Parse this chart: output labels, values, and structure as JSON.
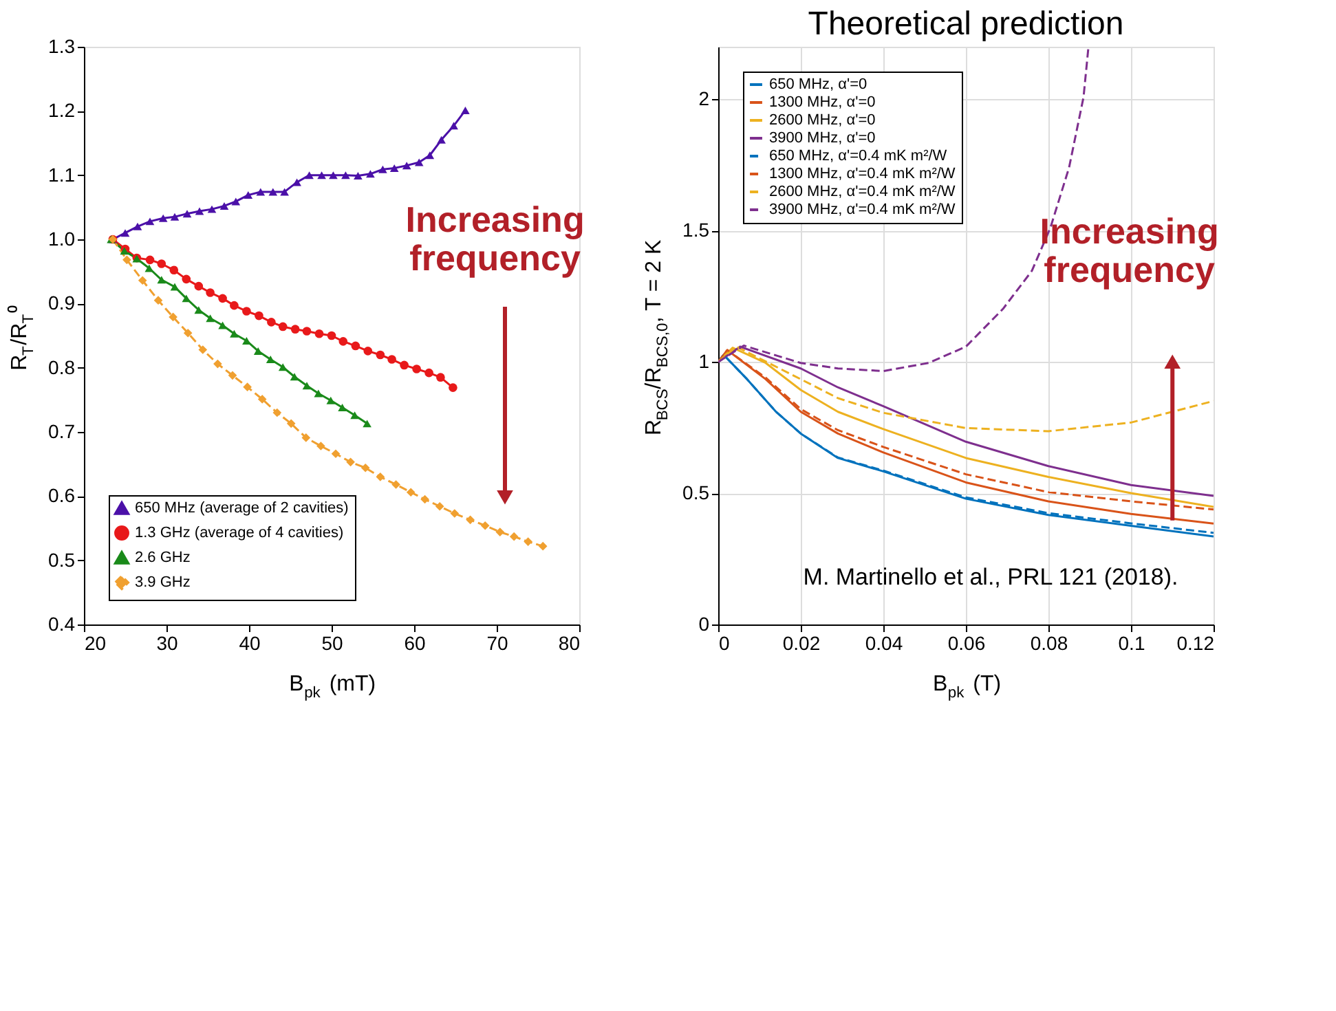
{
  "chart_data": [
    {
      "type": "line",
      "xlabel": "B$_{pk}$ (mT)",
      "ylabel": "R$_{T}$/R$_{T}$⁰",
      "xlim": [
        20,
        80
      ],
      "xticks": [
        20,
        30,
        40,
        50,
        60,
        70,
        80
      ],
      "ylim": [
        0.4,
        1.3
      ],
      "yticks": [
        {
          "value": 0.4,
          "label": "0.4"
        },
        {
          "value": 0.5,
          "label": "0.5"
        },
        {
          "value": 0.6,
          "label": "0.6"
        },
        {
          "value": 0.7,
          "label": "0.7"
        },
        {
          "value": 0.8,
          "label": "0.8"
        },
        {
          "value": 0.9,
          "label": "0.9"
        },
        {
          "value": 1,
          "label": "1.0"
        },
        {
          "value": 1.1,
          "label": "1.1"
        },
        {
          "value": 1.2,
          "label": "1.2"
        },
        {
          "value": 1.3,
          "label": "1.3"
        }
      ],
      "grid": false,
      "legend": "bottom left",
      "annotations": [
        "Increasing frequency"
      ],
      "series": [
        {
          "name": "650 MHz (average of 2 cavities)",
          "color": "#4b10a8",
          "marker": "triangle",
          "line_style": "solid",
          "x": [
            23.5,
            25.0,
            26.5,
            28.0,
            29.6,
            31.0,
            32.5,
            34.0,
            35.5,
            37.0,
            38.4,
            39.9,
            41.4,
            42.9,
            44.3,
            45.8,
            47.3,
            48.8,
            50.2,
            51.7,
            53.2,
            54.7,
            56.2,
            57.6,
            59.1,
            60.6,
            61.9,
            63.3,
            64.8,
            66.2
          ],
          "values": [
            1.0,
            1.01,
            1.02,
            1.028,
            1.033,
            1.035,
            1.04,
            1.044,
            1.047,
            1.052,
            1.059,
            1.069,
            1.074,
            1.074,
            1.074,
            1.089,
            1.1,
            1.1,
            1.1,
            1.1,
            1.099,
            1.102,
            1.109,
            1.111,
            1.115,
            1.12,
            1.131,
            1.155,
            1.177,
            1.201
          ]
        },
        {
          "name": "1.3 GHz (average of 4 cavities)",
          "color": "#e8191a",
          "marker": "circle",
          "line_style": "solid",
          "x": [
            23.5,
            25.0,
            26.4,
            28.0,
            29.4,
            30.9,
            32.4,
            33.9,
            35.3,
            36.8,
            38.2,
            39.7,
            41.2,
            42.7,
            44.1,
            45.6,
            47.0,
            48.5,
            50.0,
            51.4,
            52.9,
            54.4,
            55.9,
            57.3,
            58.8,
            60.3,
            61.8,
            63.2,
            64.7
          ],
          "values": [
            1.0,
            0.985,
            0.971,
            0.968,
            0.962,
            0.952,
            0.938,
            0.927,
            0.917,
            0.908,
            0.897,
            0.888,
            0.881,
            0.871,
            0.864,
            0.86,
            0.857,
            0.853,
            0.85,
            0.841,
            0.834,
            0.826,
            0.82,
            0.813,
            0.804,
            0.798,
            0.792,
            0.785,
            0.769
          ]
        },
        {
          "name": "2.6 GHz",
          "color": "#1a8a1a",
          "marker": "triangle",
          "line_style": "solid",
          "x": [
            23.3,
            24.9,
            26.4,
            27.9,
            29.4,
            31.0,
            32.4,
            33.9,
            35.3,
            36.8,
            38.2,
            39.7,
            41.1,
            42.6,
            44.1,
            45.5,
            47.0,
            48.4,
            49.9,
            51.3,
            52.8,
            54.3
          ],
          "values": [
            1.0,
            0.982,
            0.97,
            0.955,
            0.937,
            0.926,
            0.908,
            0.89,
            0.877,
            0.866,
            0.853,
            0.842,
            0.826,
            0.813,
            0.801,
            0.786,
            0.772,
            0.76,
            0.749,
            0.738,
            0.726,
            0.713
          ]
        },
        {
          "name": "3.9 GHz",
          "color": "#f0a030",
          "marker": "diamond",
          "line_style": "dashed",
          "x": [
            23.5,
            25.2,
            27.1,
            29.0,
            30.8,
            32.6,
            34.4,
            36.2,
            38.0,
            39.8,
            41.6,
            43.4,
            45.1,
            46.9,
            48.7,
            50.5,
            52.3,
            54.1,
            55.9,
            57.8,
            59.6,
            61.3,
            63.1,
            64.9,
            66.8,
            68.6,
            70.4,
            72.1,
            73.8,
            75.6
          ],
          "values": [
            1.0,
            0.968,
            0.936,
            0.905,
            0.879,
            0.854,
            0.828,
            0.806,
            0.788,
            0.77,
            0.751,
            0.73,
            0.713,
            0.691,
            0.678,
            0.666,
            0.653,
            0.644,
            0.63,
            0.618,
            0.606,
            0.595,
            0.584,
            0.573,
            0.563,
            0.554,
            0.544,
            0.537,
            0.529,
            0.522
          ]
        }
      ]
    },
    {
      "type": "line",
      "title": "Theoretical prediction",
      "xlabel": "B$_{pk}$ (T)",
      "ylabel": "R$_{BCS}$/R$_{BCS,0}$, T = 2 K",
      "xlim": [
        0,
        0.12
      ],
      "xticks": [
        0,
        0.02,
        0.04,
        0.06,
        0.08,
        0.1,
        0.12
      ],
      "ylim": [
        0,
        2.2
      ],
      "yticks": [
        0,
        0.5,
        1,
        1.5,
        2
      ],
      "grid": true,
      "legend": "top left",
      "annotations": [
        "Increasing frequency",
        "M. Martinello et al., PRL 121 (2018)."
      ],
      "series": [
        {
          "name": "650 MHz, α'=0",
          "color": "#0072bd",
          "line_style": "solid",
          "x": [
            0,
            0.0013,
            0.007,
            0.014,
            0.02,
            0.029,
            0.04,
            0.06,
            0.08,
            0.1,
            0.12
          ],
          "values": [
            1.0,
            1.027,
            0.934,
            0.81,
            0.727,
            0.634,
            0.583,
            0.479,
            0.417,
            0.376,
            0.335
          ]
        },
        {
          "name": "1300 MHz, α'=0",
          "color": "#d95319",
          "line_style": "solid",
          "x": [
            0,
            0.0022,
            0.0115,
            0.02,
            0.029,
            0.04,
            0.06,
            0.08,
            0.1,
            0.12
          ],
          "values": [
            1.0,
            1.045,
            0.934,
            0.81,
            0.727,
            0.655,
            0.541,
            0.469,
            0.421,
            0.384
          ]
        },
        {
          "name": "2600 MHz, α'=0",
          "color": "#edb120",
          "line_style": "solid",
          "x": [
            0,
            0.0035,
            0.0115,
            0.02,
            0.029,
            0.04,
            0.06,
            0.08,
            0.1,
            0.12
          ],
          "values": [
            1.0,
            1.054,
            0.996,
            0.893,
            0.81,
            0.744,
            0.634,
            0.562,
            0.5,
            0.448
          ]
        },
        {
          "name": "3900 MHz, α'=0",
          "color": "#7e2f8e",
          "line_style": "solid",
          "x": [
            0,
            0.0053,
            0.02,
            0.029,
            0.04,
            0.06,
            0.08,
            0.1,
            0.12
          ],
          "values": [
            1.0,
            1.058,
            0.975,
            0.903,
            0.831,
            0.696,
            0.603,
            0.531,
            0.49
          ]
        },
        {
          "name": "650 MHz, α'=0.4 mK m²/W",
          "color": "#0072bd",
          "line_style": "dashed",
          "x": [
            0,
            0.0013,
            0.007,
            0.014,
            0.02,
            0.029,
            0.04,
            0.06,
            0.08,
            0.1,
            0.12
          ],
          "values": [
            1.0,
            1.027,
            0.934,
            0.81,
            0.727,
            0.636,
            0.586,
            0.484,
            0.424,
            0.385,
            0.349
          ]
        },
        {
          "name": "1300 MHz, α'=0.4 mK m²/W",
          "color": "#d95319",
          "line_style": "dashed",
          "x": [
            0,
            0.0022,
            0.0115,
            0.02,
            0.029,
            0.04,
            0.06,
            0.08,
            0.1,
            0.12
          ],
          "values": [
            1.0,
            1.045,
            0.94,
            0.82,
            0.74,
            0.676,
            0.572,
            0.504,
            0.469,
            0.438
          ]
        },
        {
          "name": "2600 MHz, α'=0.4 mK m²/W",
          "color": "#edb120",
          "line_style": "dashed",
          "x": [
            0,
            0.0044,
            0.02,
            0.029,
            0.04,
            0.06,
            0.08,
            0.1,
            0.12
          ],
          "values": [
            1.0,
            1.058,
            0.934,
            0.862,
            0.806,
            0.748,
            0.736,
            0.769,
            0.851
          ]
        },
        {
          "name": "3900 MHz, α'=0.4 mK m²/W",
          "color": "#7e2f8e",
          "line_style": "dashed",
          "x": [
            0,
            0.0062,
            0.02,
            0.029,
            0.04,
            0.051,
            0.06,
            0.069,
            0.076,
            0.0805,
            0.085,
            0.0885,
            0.0897
          ],
          "values": [
            1.0,
            1.062,
            0.996,
            0.975,
            0.965,
            0.996,
            1.058,
            1.202,
            1.347,
            1.512,
            1.74,
            2.008,
            2.2
          ]
        }
      ]
    }
  ]
}
